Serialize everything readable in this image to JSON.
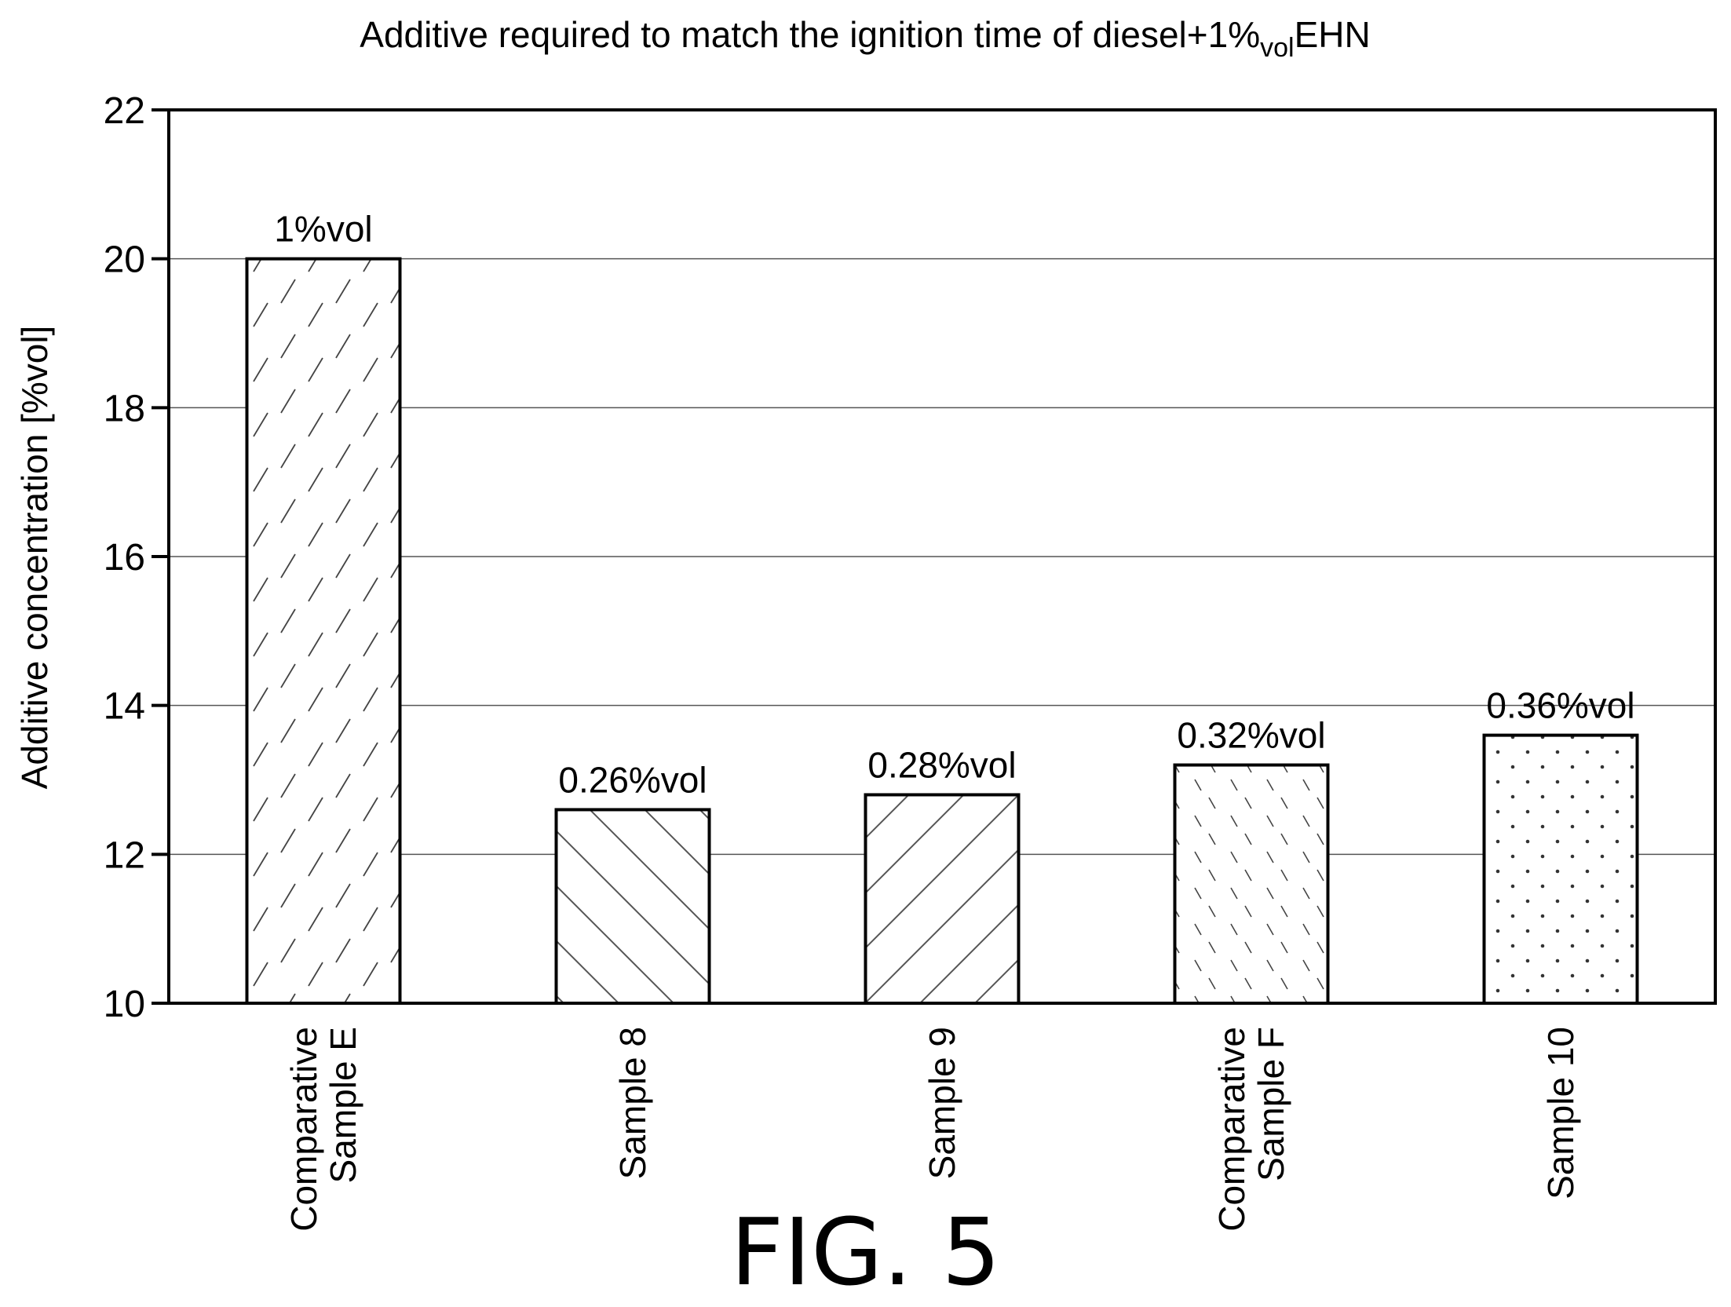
{
  "figure_label": "FIG. 5",
  "chart_data": {
    "type": "bar",
    "title_parts": [
      "Additive required to match the ignition time of diesel+1%",
      "vol",
      "EHN"
    ],
    "ylabel": "Additive concentration [%vol]",
    "xlabel": "",
    "ylim": [
      10,
      22
    ],
    "yticks": [
      10,
      12,
      14,
      16,
      18,
      20,
      22
    ],
    "grid": true,
    "categories": [
      [
        "Comparative",
        "Sample E"
      ],
      [
        "Sample 8"
      ],
      [
        "Sample 9"
      ],
      [
        "Comparative",
        "Sample F"
      ],
      [
        "Sample 10"
      ]
    ],
    "values": [
      20.0,
      12.6,
      12.8,
      13.2,
      13.6
    ],
    "data_labels": [
      "1%vol",
      "0.26%vol",
      "0.28%vol",
      "0.32%vol",
      "0.36%vol"
    ],
    "fill_patterns": [
      "sparse-dash-diagonal",
      "back-diagonal-lines",
      "forward-diagonal-lines",
      "dense-dash-diagonal",
      "dots"
    ],
    "colors": {
      "axis": "#000000",
      "grid": "#555555",
      "bar_outline": "#000000",
      "pattern": "#444444"
    }
  }
}
